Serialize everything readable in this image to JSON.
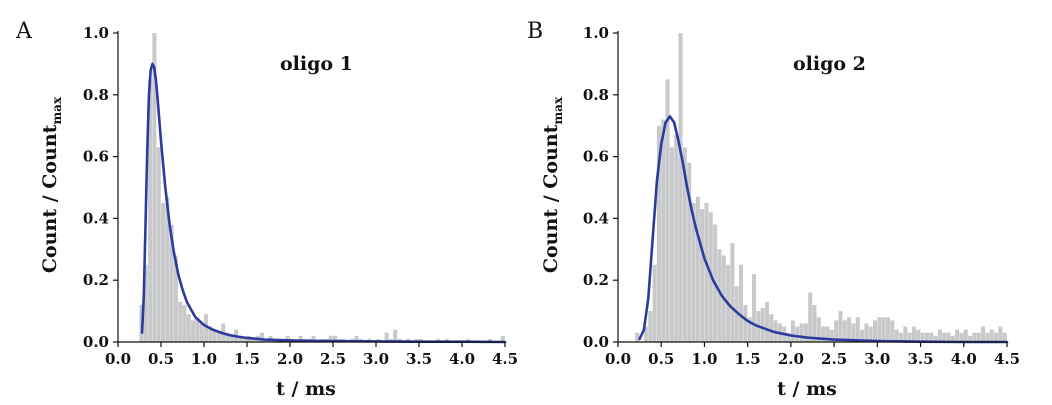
{
  "chart_data": [
    {
      "type": "bar",
      "panel_label": "A",
      "title": "oligo 1",
      "xlabel": "t / ms",
      "ylabel": {
        "main": "Count / Count",
        "subscript": "max"
      },
      "xlim": [
        0,
        4.5
      ],
      "ylim": [
        0,
        1.0
      ],
      "xticks": [
        "0.0",
        "0.5",
        "1.0",
        "1.5",
        "2.0",
        "2.5",
        "3.0",
        "3.5",
        "4.0",
        "4.5"
      ],
      "yticks": [
        "0.0",
        "0.2",
        "0.4",
        "0.6",
        "0.8",
        "1.0"
      ],
      "grid": false,
      "bin_width": 0.05,
      "histogram_color": "#c8c9cb",
      "fit_color": "#2e3a9e",
      "series": [
        {
          "kind": "histogram",
          "bin_start": [
            0.25,
            0.3,
            0.35,
            0.4,
            0.45,
            0.5,
            0.55,
            0.6,
            0.65,
            0.7,
            0.75,
            0.8,
            0.85,
            0.9,
            0.95,
            1.0,
            1.05,
            1.1,
            1.15,
            1.2,
            1.25,
            1.3,
            1.35,
            1.4,
            1.45,
            1.5,
            1.55,
            1.6,
            1.65,
            1.7,
            1.75,
            1.8,
            1.85,
            1.9,
            1.95,
            2.0,
            2.05,
            2.1,
            2.15,
            2.2,
            2.25,
            2.3,
            2.35,
            2.4,
            2.45,
            2.5,
            2.55,
            2.6,
            2.65,
            2.7,
            2.75,
            2.8,
            2.85,
            2.9,
            2.95,
            3.0,
            3.05,
            3.1,
            3.15,
            3.2,
            3.25,
            3.3,
            3.35,
            3.4,
            3.45,
            3.5,
            3.55,
            3.6,
            3.65,
            3.7,
            3.75,
            3.8,
            3.85,
            3.9,
            3.95,
            4.0,
            4.05,
            4.1,
            4.15,
            4.2,
            4.25,
            4.3,
            4.35,
            4.4,
            4.45
          ],
          "values": [
            0.12,
            0.25,
            0.85,
            1.0,
            0.63,
            0.45,
            0.47,
            0.38,
            0.28,
            0.13,
            0.12,
            0.09,
            0.07,
            0.08,
            0.06,
            0.09,
            0.05,
            0.04,
            0.03,
            0.06,
            0.03,
            0.02,
            0.04,
            0.02,
            0.01,
            0.02,
            0.01,
            0.02,
            0.03,
            0.01,
            0.02,
            0.01,
            0.01,
            0.01,
            0.02,
            0.01,
            0.0,
            0.02,
            0.01,
            0.01,
            0.02,
            0.0,
            0.01,
            0.01,
            0.02,
            0.02,
            0.01,
            0.01,
            0.0,
            0.01,
            0.02,
            0.01,
            0.0,
            0.01,
            0.0,
            0.01,
            0.0,
            0.03,
            0.01,
            0.04,
            0.01,
            0.0,
            0.01,
            0.0,
            0.01,
            0.01,
            0.0,
            0.0,
            0.0,
            0.01,
            0.0,
            0.01,
            0.0,
            0.0,
            0.0,
            0.0,
            0.01,
            0.0,
            0.0,
            0.0,
            0.0,
            0.01,
            0.0,
            0.0,
            0.02
          ]
        },
        {
          "kind": "fit",
          "x": [
            0.28,
            0.3,
            0.32,
            0.34,
            0.36,
            0.38,
            0.4,
            0.42,
            0.44,
            0.46,
            0.48,
            0.5,
            0.55,
            0.6,
            0.65,
            0.7,
            0.75,
            0.8,
            0.9,
            1.0,
            1.1,
            1.2,
            1.3,
            1.4,
            1.5,
            1.7,
            1.9,
            2.2,
            2.5,
            3.0,
            3.5,
            4.0,
            4.5
          ],
          "y": [
            0.03,
            0.15,
            0.38,
            0.62,
            0.8,
            0.88,
            0.9,
            0.89,
            0.85,
            0.79,
            0.72,
            0.65,
            0.5,
            0.38,
            0.29,
            0.22,
            0.17,
            0.13,
            0.08,
            0.055,
            0.04,
            0.03,
            0.022,
            0.017,
            0.013,
            0.008,
            0.006,
            0.004,
            0.003,
            0.002,
            0.001,
            0.001,
            0.0
          ]
        }
      ]
    },
    {
      "type": "bar",
      "panel_label": "B",
      "title": "oligo 2",
      "xlabel": "t / ms",
      "ylabel": {
        "main": "Count / Count",
        "subscript": "max"
      },
      "xlim": [
        0,
        4.5
      ],
      "ylim": [
        0,
        1.0
      ],
      "xticks": [
        "0.0",
        "0.5",
        "1.0",
        "1.5",
        "2.0",
        "2.5",
        "3.0",
        "3.5",
        "4.0",
        "4.5"
      ],
      "yticks": [
        "0.0",
        "0.2",
        "0.4",
        "0.6",
        "0.8",
        "1.0"
      ],
      "grid": false,
      "bin_width": 0.05,
      "histogram_color": "#c8c9cb",
      "fit_color": "#2e3a9e",
      "series": [
        {
          "kind": "histogram",
          "bin_start": [
            0.15,
            0.2,
            0.25,
            0.3,
            0.35,
            0.4,
            0.45,
            0.5,
            0.55,
            0.6,
            0.65,
            0.7,
            0.75,
            0.8,
            0.85,
            0.9,
            0.95,
            1.0,
            1.05,
            1.1,
            1.15,
            1.2,
            1.25,
            1.3,
            1.35,
            1.4,
            1.45,
            1.5,
            1.55,
            1.6,
            1.65,
            1.7,
            1.75,
            1.8,
            1.85,
            1.9,
            1.95,
            2.0,
            2.05,
            2.1,
            2.15,
            2.2,
            2.25,
            2.3,
            2.35,
            2.4,
            2.45,
            2.5,
            2.55,
            2.6,
            2.65,
            2.7,
            2.75,
            2.8,
            2.85,
            2.9,
            2.95,
            3.0,
            3.05,
            3.1,
            3.15,
            3.2,
            3.25,
            3.3,
            3.35,
            3.4,
            3.45,
            3.5,
            3.55,
            3.6,
            3.65,
            3.7,
            3.75,
            3.8,
            3.85,
            3.9,
            3.95,
            4.0,
            4.05,
            4.1,
            4.15,
            4.2,
            4.25,
            4.3,
            4.35,
            4.4,
            4.45
          ],
          "values": [
            0.0,
            0.03,
            0.0,
            0.05,
            0.1,
            0.25,
            0.7,
            0.72,
            0.85,
            0.63,
            0.67,
            1.0,
            0.63,
            0.58,
            0.45,
            0.47,
            0.43,
            0.45,
            0.42,
            0.38,
            0.3,
            0.28,
            0.25,
            0.32,
            0.18,
            0.25,
            0.12,
            0.08,
            0.22,
            0.1,
            0.11,
            0.13,
            0.09,
            0.07,
            0.06,
            0.05,
            0.03,
            0.07,
            0.05,
            0.06,
            0.06,
            0.16,
            0.12,
            0.08,
            0.05,
            0.05,
            0.04,
            0.07,
            0.1,
            0.07,
            0.08,
            0.06,
            0.08,
            0.04,
            0.06,
            0.05,
            0.07,
            0.08,
            0.08,
            0.08,
            0.07,
            0.04,
            0.03,
            0.05,
            0.03,
            0.05,
            0.04,
            0.03,
            0.03,
            0.03,
            0.02,
            0.04,
            0.03,
            0.03,
            0.02,
            0.04,
            0.03,
            0.04,
            0.02,
            0.03,
            0.03,
            0.05,
            0.03,
            0.04,
            0.03,
            0.05,
            0.03
          ]
        },
        {
          "kind": "fit",
          "x": [
            0.25,
            0.3,
            0.35,
            0.4,
            0.45,
            0.5,
            0.55,
            0.6,
            0.65,
            0.7,
            0.75,
            0.8,
            0.85,
            0.9,
            1.0,
            1.1,
            1.2,
            1.3,
            1.4,
            1.5,
            1.6,
            1.8,
            2.0,
            2.2,
            2.5,
            3.0,
            3.5,
            4.0,
            4.5
          ],
          "y": [
            0.01,
            0.04,
            0.14,
            0.33,
            0.52,
            0.64,
            0.71,
            0.73,
            0.71,
            0.65,
            0.58,
            0.5,
            0.43,
            0.37,
            0.27,
            0.2,
            0.15,
            0.115,
            0.09,
            0.068,
            0.053,
            0.033,
            0.021,
            0.014,
            0.008,
            0.003,
            0.001,
            0.0,
            0.0
          ]
        }
      ]
    }
  ]
}
